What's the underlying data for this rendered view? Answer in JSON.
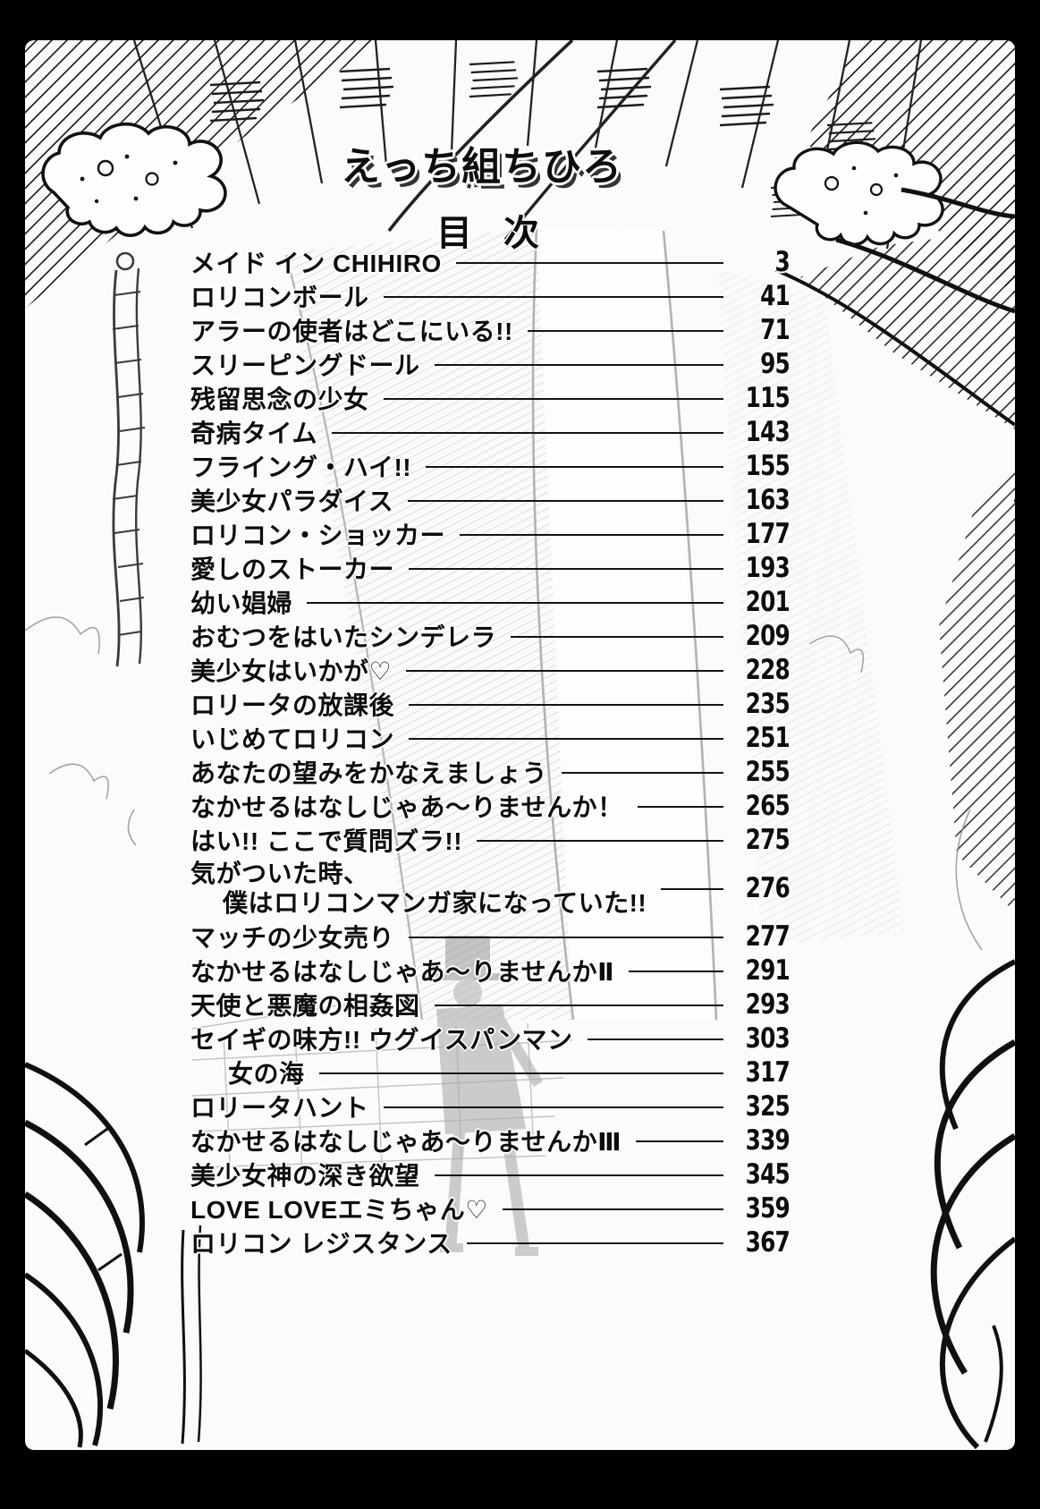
{
  "book": {
    "title": "えっち組ちひろ",
    "toc_heading": "目次"
  },
  "toc": {
    "entries": [
      {
        "title": "メイド イン CHIHIRO",
        "page": "3"
      },
      {
        "title": "ロリコンボール",
        "page": "41"
      },
      {
        "title": "アラーの使者はどこにいる!!",
        "page": "71"
      },
      {
        "title": "スリーピングドール",
        "page": "95"
      },
      {
        "title": "残留思念の少女",
        "page": "115"
      },
      {
        "title": "奇病タイム",
        "page": "143"
      },
      {
        "title": "フライング・ハイ!!",
        "page": "155"
      },
      {
        "title": "美少女パラダイス",
        "page": "163"
      },
      {
        "title": "ロリコン・ショッカー",
        "page": "177"
      },
      {
        "title": "愛しのストーカー",
        "page": "193"
      },
      {
        "title": "幼い娼婦",
        "page": "201"
      },
      {
        "title": "おむつをはいたシンデレラ",
        "page": "209"
      },
      {
        "title": "美少女はいかが♡",
        "page": "228"
      },
      {
        "title": "ロリータの放課後",
        "page": "235"
      },
      {
        "title": "いじめてロリコン",
        "page": "251"
      },
      {
        "title": "あなたの望みをかなえましょう",
        "page": "255"
      },
      {
        "title": "なかせるはなしじゃあ〜りませんか！",
        "page": "265"
      },
      {
        "title": "はい!! ここで質問ズラ!!",
        "page": "275"
      },
      {
        "title": "気がついた時、",
        "line2": "僕はロリコンマンガ家になっていた!!",
        "page": "276"
      },
      {
        "title": "マッチの少女売り",
        "page": "277"
      },
      {
        "title": "なかせるはなしじゃあ〜りませんかⅡ",
        "page": "291"
      },
      {
        "title": "天使と悪魔の相姦図",
        "page": "293"
      },
      {
        "title": "セイギの味方!! ウグイスパンマン",
        "page": "303"
      },
      {
        "title": "女の海",
        "page": "317",
        "indent": true
      },
      {
        "title": "ロリータハント",
        "page": "325"
      },
      {
        "title": "なかせるはなしじゃあ〜りませんかⅢ",
        "page": "339"
      },
      {
        "title": "美少女神の深き欲望",
        "page": "345"
      },
      {
        "title": "LOVE LOVEエミちゃん♡",
        "page": "359"
      },
      {
        "title": "ロリコン レジスタンス",
        "page": "367"
      }
    ]
  },
  "colors": {
    "ink": "#141414",
    "paper": "#fbfbf9",
    "border": "#000000",
    "art_gray": "#b2b2b2"
  }
}
